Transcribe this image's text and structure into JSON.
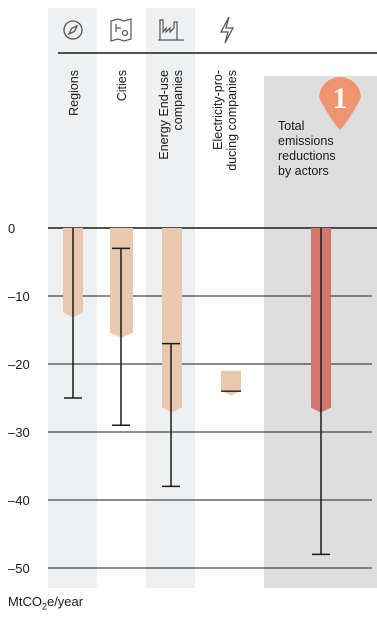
{
  "chart_data": {
    "type": "bar",
    "categories": [
      {
        "label": "Regions",
        "icon": "compass-icon"
      },
      {
        "label": "Cities",
        "icon": "city-map-icon"
      },
      {
        "label": "Energy End-use companies",
        "icon": "factory-icon"
      },
      {
        "label": "Electricity-pro-ducing companies",
        "icon": "lightning-icon"
      },
      {
        "label": "Total emissions reductions by actors",
        "icon": ""
      }
    ],
    "series": [
      {
        "values": [
          -13,
          -16,
          -27,
          -24,
          -27
        ],
        "ranges": [
          [
            null,
            null
          ],
          [
            null,
            null
          ],
          [
            null,
            null
          ],
          [
            -21,
            -24.5
          ],
          [
            null,
            null
          ]
        ],
        "error_low": [
          -25,
          -29,
          -38,
          null,
          -48
        ],
        "error_high": [
          0,
          -3,
          -17,
          null,
          0
        ]
      }
    ],
    "badge": "1",
    "ylim": [
      -50,
      0
    ],
    "yticks": [
      0,
      -10,
      -20,
      -30,
      -40,
      -50
    ],
    "ytick_labels": [
      "0",
      "–10",
      "–20",
      "–30",
      "–40",
      "–50"
    ],
    "unit_prefix": "MtCO",
    "unit_sub": "2",
    "unit_suffix": "e/year",
    "colors": {
      "bar": "#e8c9ad",
      "total_bar": "#d4776a",
      "column_bg": "#eef0f2",
      "total_bg": "#dedede",
      "badge": "#ee9470",
      "grid": "#1a1a1a"
    }
  }
}
